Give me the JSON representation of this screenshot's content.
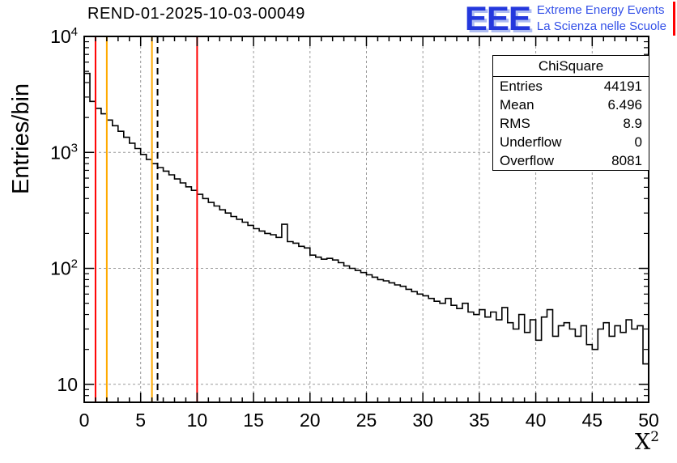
{
  "title": "REND-01-2025-10-03-00049",
  "logo": {
    "acronym": "EEE",
    "line1": "Extreme Energy Events",
    "line2": "La Scienza nelle Scuole"
  },
  "stats": {
    "title": "ChiSquare",
    "rows": [
      {
        "label": "Entries",
        "value": "44191"
      },
      {
        "label": "Mean",
        "value": "6.496"
      },
      {
        "label": "RMS",
        "value": "8.9"
      },
      {
        "label": "Underflow",
        "value": "0"
      },
      {
        "label": "Overflow",
        "value": "8081"
      }
    ]
  },
  "chart_data": {
    "type": "bar",
    "subtype": "histogram-step",
    "title": "REND-01-2025-10-03-00049",
    "xlabel": "X",
    "xlabel_sup": "2",
    "ylabel": "Entries/bin",
    "xlim": [
      0,
      50
    ],
    "ylim": [
      7,
      10000
    ],
    "yscale": "log",
    "grid": true,
    "bin_width": 0.5,
    "x_ticks": [
      0,
      5,
      10,
      15,
      20,
      25,
      30,
      35,
      40,
      45,
      50
    ],
    "y_decades": [
      10,
      100,
      1000,
      10000
    ],
    "values": [
      4800,
      2750,
      2400,
      2150,
      1900,
      1700,
      1520,
      1350,
      1200,
      1080,
      960,
      870,
      800,
      740,
      690,
      640,
      590,
      545,
      505,
      470,
      435,
      400,
      370,
      345,
      320,
      300,
      280,
      265,
      250,
      235,
      220,
      210,
      200,
      195,
      185,
      240,
      170,
      165,
      155,
      150,
      130,
      125,
      120,
      122,
      118,
      112,
      105,
      100,
      96,
      92,
      88,
      84,
      80,
      78,
      75,
      72,
      70,
      66,
      63,
      60,
      58,
      55,
      52,
      50,
      55,
      48,
      45,
      50,
      42,
      40,
      44,
      38,
      42,
      36,
      46,
      34,
      30,
      40,
      28,
      36,
      24,
      38,
      44,
      26,
      32,
      34,
      30,
      26,
      32,
      22,
      20,
      30,
      34,
      26,
      32,
      28,
      36,
      30,
      32,
      15
    ],
    "vlines": [
      {
        "x": 1,
        "color": "#ff0000",
        "style": "solid"
      },
      {
        "x": 2,
        "color": "#ffaa00",
        "style": "solid"
      },
      {
        "x": 6,
        "color": "#ffaa00",
        "style": "solid"
      },
      {
        "x": 6.496,
        "color": "#000000",
        "style": "dashed"
      },
      {
        "x": 10,
        "color": "#ff0000",
        "style": "solid"
      }
    ],
    "colors": {
      "hist": "#000000",
      "grid": "#999999",
      "frame": "#000000"
    }
  }
}
